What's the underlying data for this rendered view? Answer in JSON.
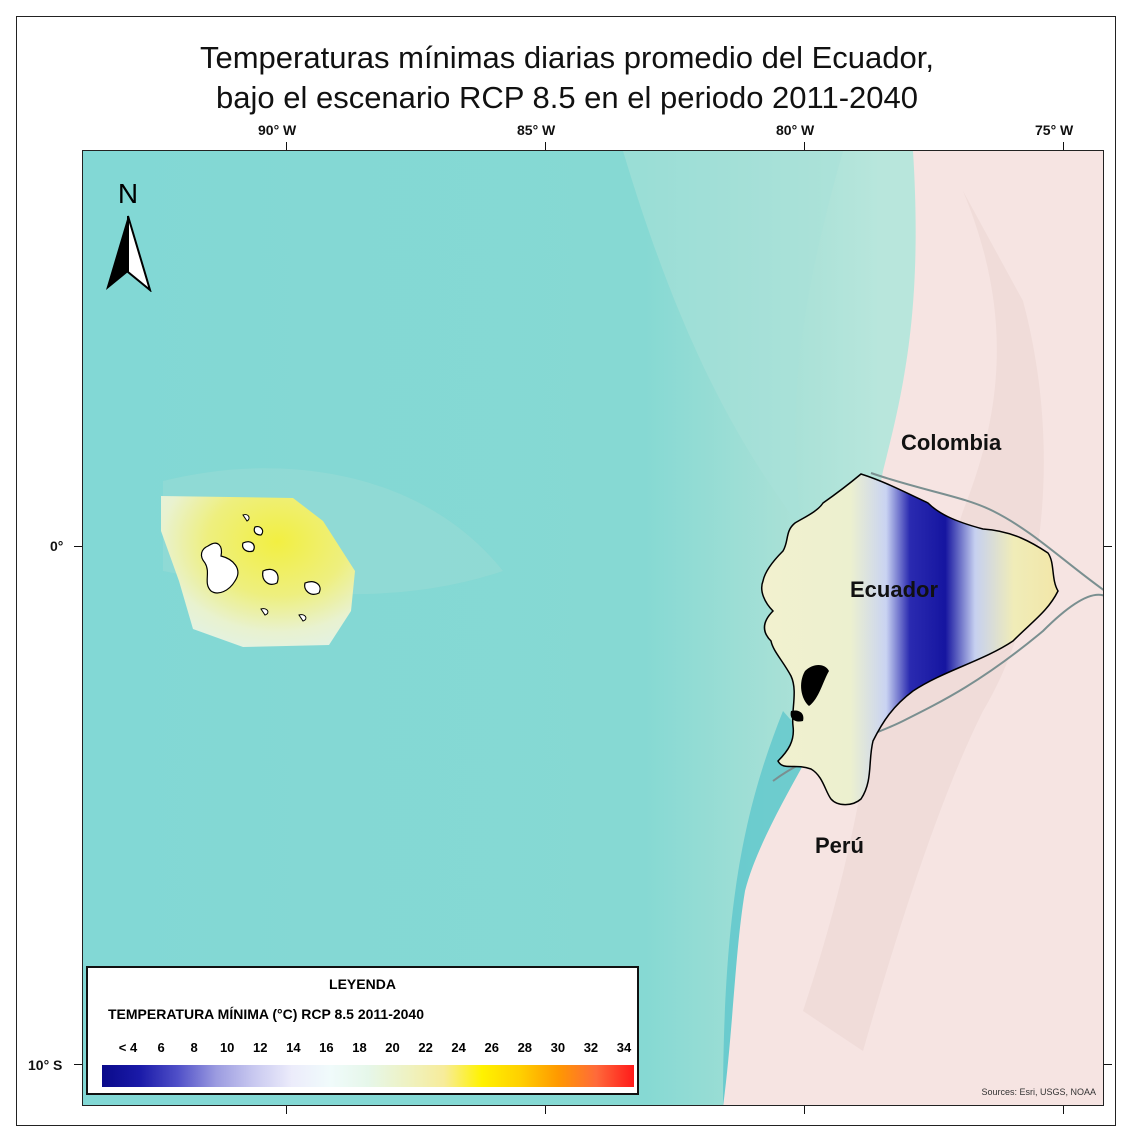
{
  "title": {
    "line1": "Temperaturas mínimas diarias promedio del Ecuador,",
    "line2": "bajo el escenario RCP 8.5 en el periodo 2011-2040"
  },
  "axes": {
    "longitude_labels": [
      "90° W",
      "85° W",
      "80° W",
      "75° W"
    ],
    "latitude_labels": [
      "0°",
      "10° S"
    ]
  },
  "map": {
    "countries": [
      "Colombia",
      "Ecuador",
      "Perú"
    ],
    "north_arrow": {
      "icon": "north-arrow-icon",
      "letter": "N"
    },
    "colors": {
      "ocean": "#7ed6d4",
      "ocean_shallow": "#a3dfd8",
      "ocean_deep": "#58c4cc",
      "land": "#f6e4e2"
    }
  },
  "legend": {
    "title": "LEYENDA",
    "subtitle": "TEMPERATURA MÍNIMA (°C) RCP 8.5 2011-2040",
    "ticks": [
      "< 4",
      "6",
      "8",
      "10",
      "12",
      "14",
      "16",
      "18",
      "20",
      "22",
      "24",
      "26",
      "28",
      "30",
      "32",
      "34"
    ],
    "colors": [
      "#0a0a8a",
      "#1a1aa8",
      "#5050c8",
      "#9b9be0",
      "#c9c9f0",
      "#ececfb",
      "#f0fbfb",
      "#e6f7ea",
      "#eef2c4",
      "#f7ec9a",
      "#fff200",
      "#ffd000",
      "#ff9900",
      "#ff6a3a",
      "#ff1a1a"
    ]
  },
  "source": "Sources: Esri, USGS, NOAA"
}
